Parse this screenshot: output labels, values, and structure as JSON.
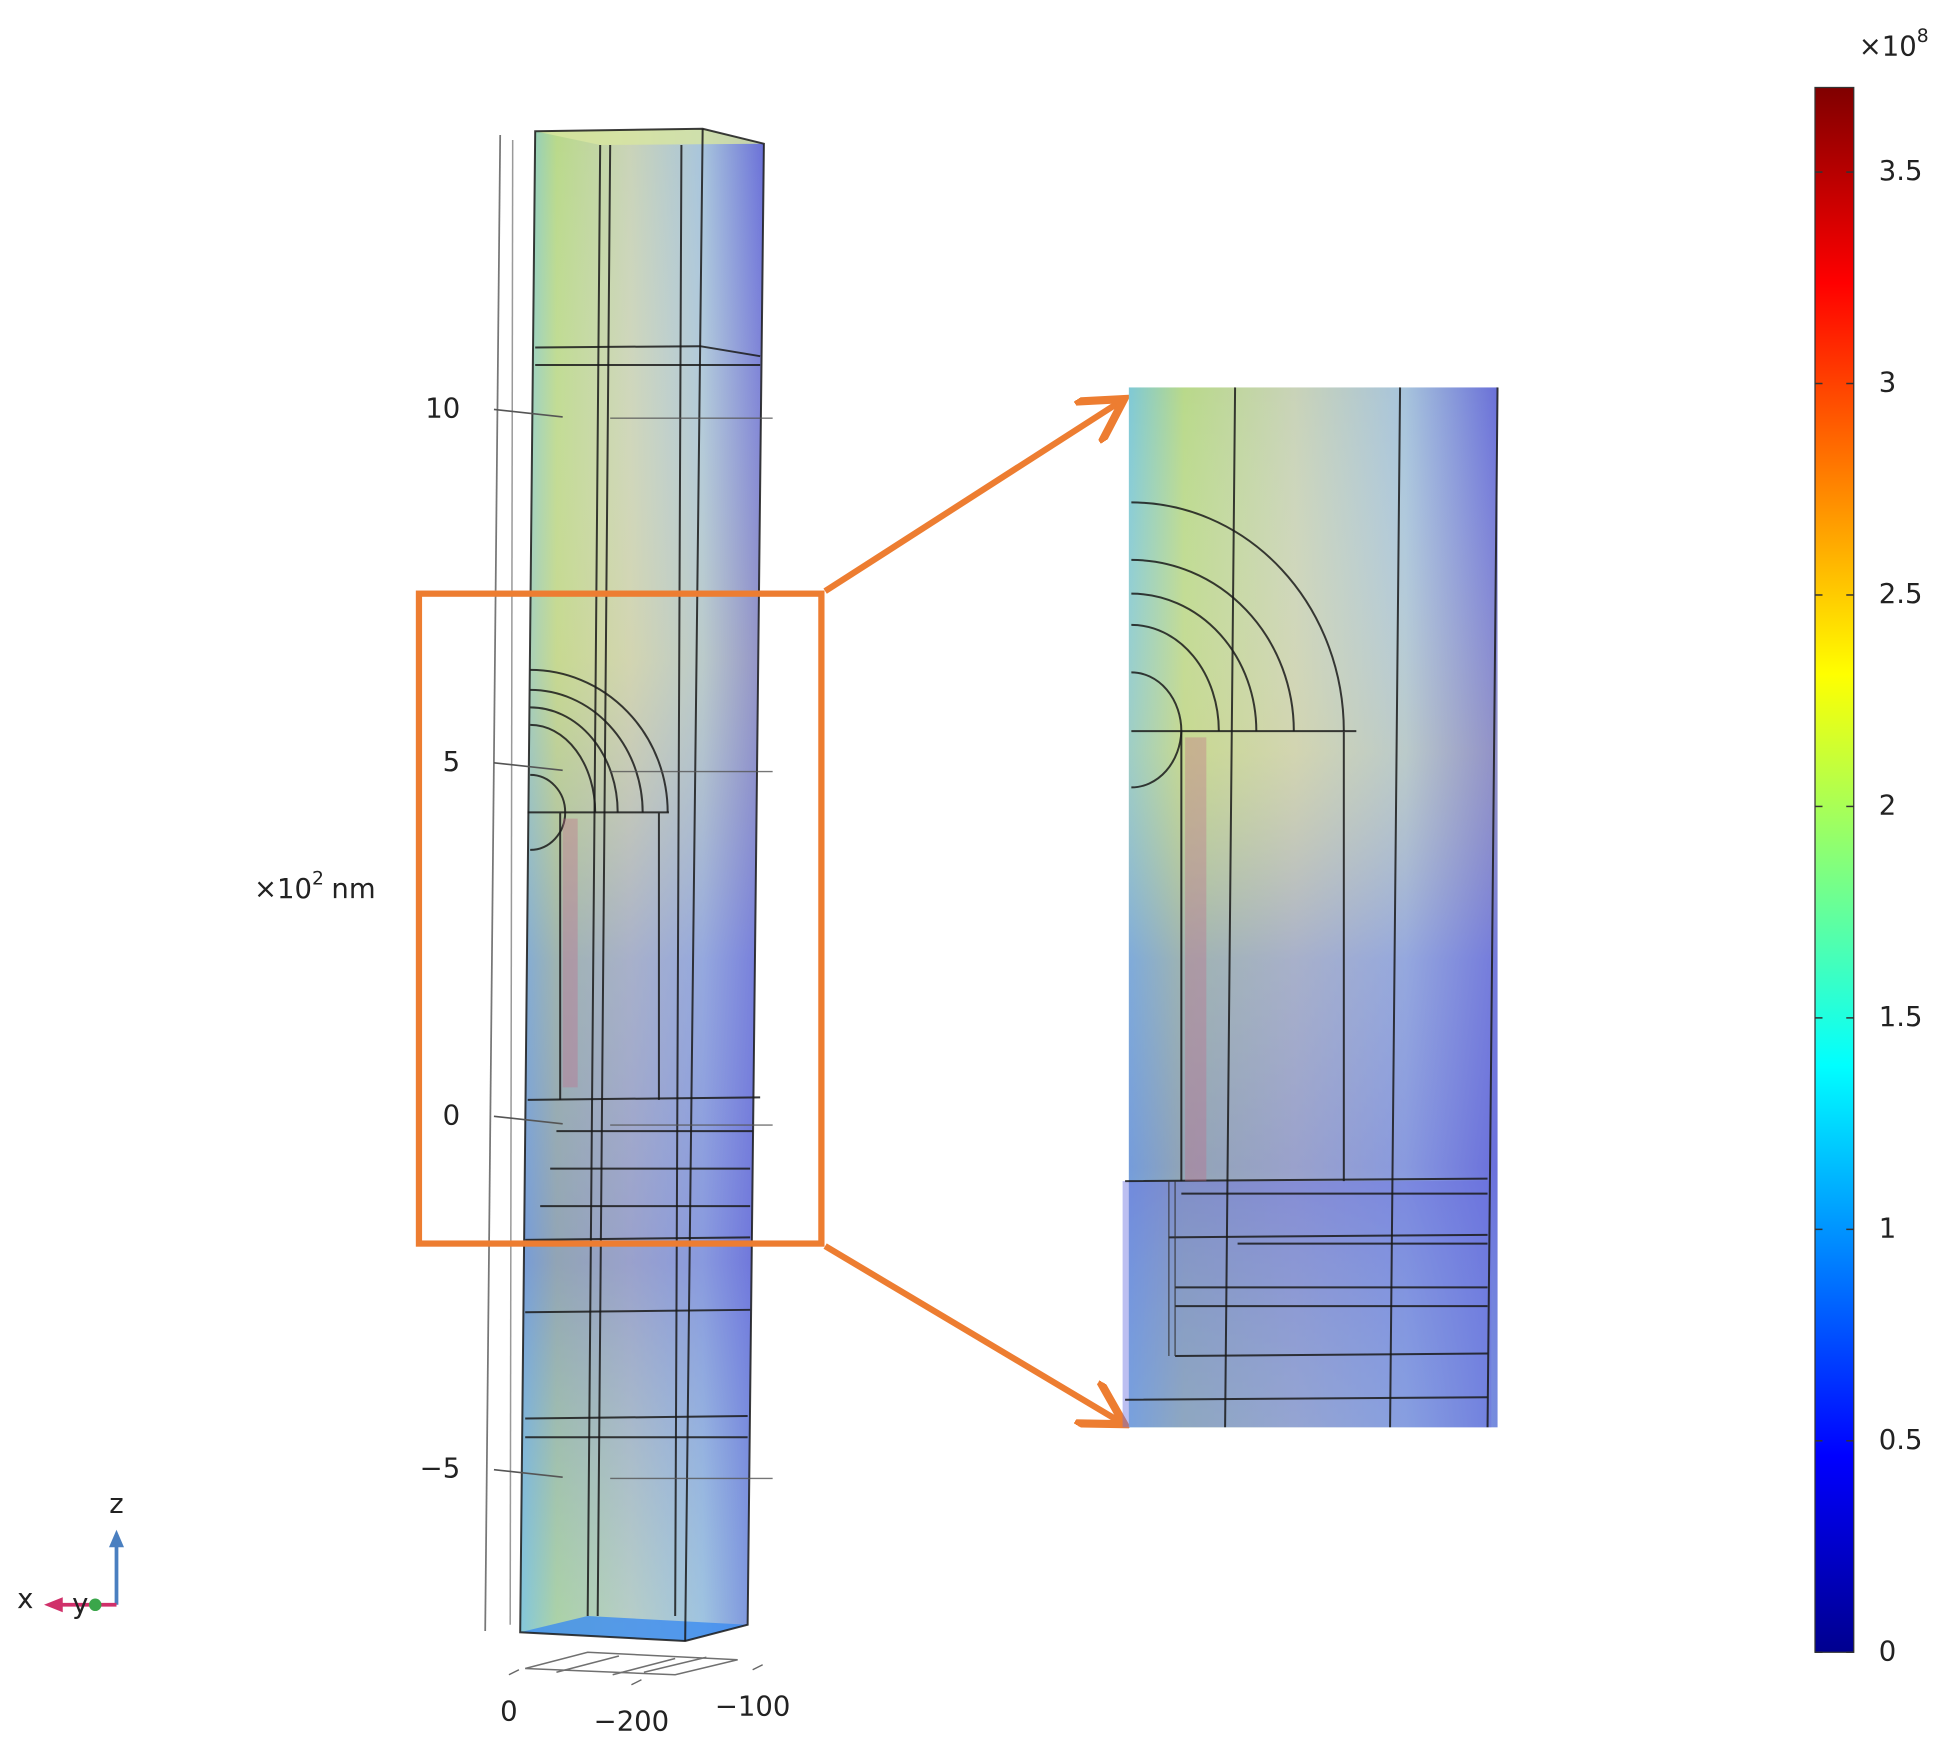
{
  "plot": {
    "z_axis": {
      "multiplier": "×10",
      "exponent": "2",
      "unit": "nm",
      "lim": [
        -7.3,
        13.9
      ],
      "ticks": [
        10,
        5,
        0,
        {
          "value": -5,
          "label": "−5"
        }
      ]
    },
    "base_axis": {
      "ticks": [
        0,
        {
          "value": -200,
          "label": "−200"
        },
        {
          "value": -100,
          "label": "−100"
        }
      ]
    },
    "colorbar": {
      "multiplier": "×10",
      "exponent": "8",
      "lim": [
        0,
        3.7
      ],
      "ticks": [
        0,
        0.5,
        1,
        1.5,
        2,
        2.5,
        3,
        3.5
      ],
      "colormap": "jet"
    },
    "axis_triad": {
      "z": "z",
      "x": "x",
      "y": "y"
    }
  }
}
